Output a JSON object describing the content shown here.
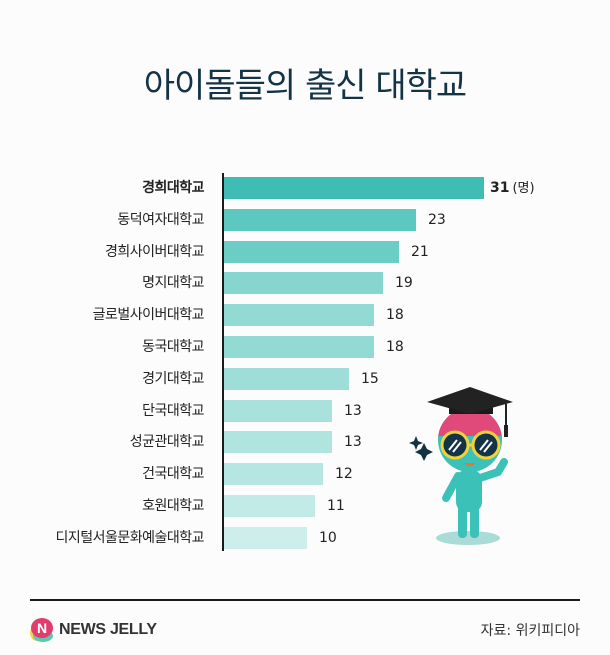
{
  "title": "아이돌들의 출신 대학교",
  "chart_data": {
    "type": "bar",
    "orientation": "horizontal",
    "title": "아이돌들의 출신 대학교",
    "xlabel": "",
    "ylabel": "",
    "unit": "(명)",
    "categories": [
      "경희대학교",
      "동덕여자대학교",
      "경희사이버대학교",
      "명지대학교",
      "글로벌사이버대학교",
      "동국대학교",
      "경기대학교",
      "단국대학교",
      "성균관대학교",
      "건국대학교",
      "호원대학교",
      "디지털서울문화예술대학교"
    ],
    "values": [
      31,
      23,
      21,
      19,
      18,
      18,
      15,
      13,
      13,
      12,
      11,
      10
    ],
    "grid": false,
    "legend": null
  },
  "rows": [
    {
      "label": "경희대학교",
      "value": "31",
      "unit": "(명)",
      "color": "#3fbcb4",
      "bold": true
    },
    {
      "label": "동덕여자대학교",
      "value": "23",
      "color": "#5cc8c0"
    },
    {
      "label": "경희사이버대학교",
      "value": "21",
      "color": "#6ccdc5"
    },
    {
      "label": "명지대학교",
      "value": "19",
      "color": "#86d6cf"
    },
    {
      "label": "글로벌사이버대학교",
      "value": "18",
      "color": "#93dad4"
    },
    {
      "label": "동국대학교",
      "value": "18",
      "color": "#93dad4"
    },
    {
      "label": "경기대학교",
      "value": "15",
      "color": "#9fded8"
    },
    {
      "label": "단국대학교",
      "value": "13",
      "color": "#a9e2dc"
    },
    {
      "label": "성균관대학교",
      "value": "13",
      "color": "#b0e4df"
    },
    {
      "label": "건국대학교",
      "value": "12",
      "color": "#b6e6e1"
    },
    {
      "label": "호원대학교",
      "value": "11",
      "color": "#c2eae6"
    },
    {
      "label": "디지털서울문화예술대학교",
      "value": "10",
      "color": "#cdeeea"
    }
  ],
  "footer": {
    "brand": "NEWS JELLY",
    "source": "자료: 위키피디아"
  },
  "colors": {
    "title": "#143446",
    "accent": "#3fbcb4"
  }
}
